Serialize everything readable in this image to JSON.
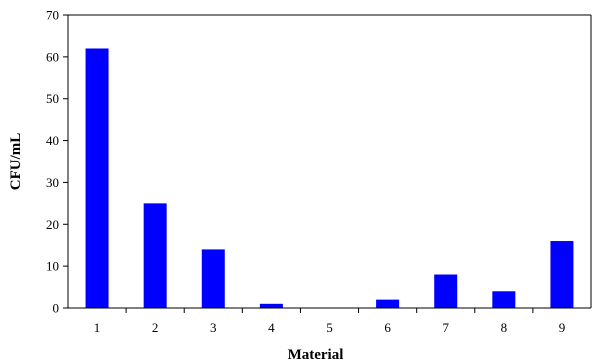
{
  "chart_data": {
    "type": "bar",
    "categories": [
      "1",
      "2",
      "3",
      "4",
      "5",
      "6",
      "7",
      "8",
      "9"
    ],
    "values": [
      62,
      25,
      14,
      1,
      0,
      2,
      8,
      4,
      16
    ],
    "xlabel": "Material",
    "ylabel": "CFU/mL",
    "ylim": [
      0,
      70
    ],
    "yticks": [
      0,
      10,
      20,
      30,
      40,
      50,
      60,
      70
    ],
    "grid": false,
    "bar_color": "#0000ff"
  }
}
